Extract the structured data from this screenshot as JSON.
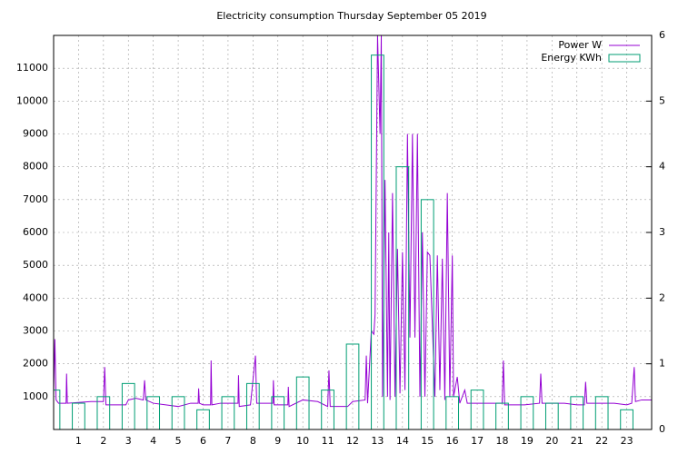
{
  "chart_data": {
    "type": "line",
    "title": "Electricity consumption Thursday September 05 2019",
    "xlim": [
      0,
      24
    ],
    "xticks": [
      1,
      2,
      3,
      4,
      5,
      6,
      7,
      8,
      9,
      10,
      11,
      12,
      13,
      14,
      15,
      16,
      17,
      18,
      19,
      20,
      21,
      22,
      23
    ],
    "ylim": [
      0,
      12000
    ],
    "yticks": [
      1000,
      2000,
      3000,
      4000,
      5000,
      6000,
      7000,
      8000,
      9000,
      10000,
      11000
    ],
    "y2lim": [
      0,
      6
    ],
    "y2ticks": [
      0,
      1,
      2,
      3,
      4,
      5,
      6
    ],
    "grid": true,
    "legend": "top-right",
    "series": [
      {
        "name": "Power W",
        "type": "line",
        "color": "#9400d3",
        "x": [
          0,
          0.05,
          0.1,
          0.2,
          0.5,
          0.52,
          0.55,
          1.5,
          2.0,
          2.05,
          2.1,
          2.9,
          3.0,
          3.3,
          3.6,
          3.65,
          3.7,
          4.0,
          5.0,
          5.5,
          5.8,
          5.82,
          5.85,
          6.0,
          6.3,
          6.32,
          6.35,
          6.7,
          7.4,
          7.42,
          7.45,
          7.9,
          8.1,
          8.15,
          8.8,
          8.82,
          8.85,
          9.4,
          9.42,
          9.45,
          10.0,
          10.6,
          11.0,
          11.05,
          11.1,
          11.8,
          12.0,
          12.5,
          12.55,
          12.6,
          12.75,
          12.85,
          12.9,
          13.0,
          13.1,
          13.15,
          13.2,
          13.3,
          13.4,
          13.45,
          13.5,
          13.6,
          13.7,
          13.8,
          13.9,
          14.0,
          14.1,
          14.2,
          14.3,
          14.4,
          14.5,
          14.6,
          14.7,
          14.8,
          14.9,
          15.0,
          15.1,
          15.3,
          15.4,
          15.5,
          15.6,
          15.7,
          15.8,
          15.9,
          16.0,
          16.05,
          16.2,
          16.3,
          16.5,
          16.6,
          17.0,
          17.5,
          18.0,
          18.05,
          18.1,
          18.9,
          19.5,
          19.55,
          19.6,
          20.5,
          21.0,
          21.3,
          21.35,
          21.4,
          22.5,
          23.0,
          23.2,
          23.3,
          23.35,
          23.6,
          24
        ],
        "values": [
          1000,
          2750,
          900,
          800,
          800,
          1700,
          800,
          850,
          850,
          1900,
          750,
          750,
          900,
          950,
          900,
          1500,
          900,
          800,
          700,
          800,
          800,
          1250,
          800,
          750,
          750,
          2100,
          750,
          800,
          800,
          1650,
          700,
          750,
          2250,
          800,
          800,
          1500,
          750,
          750,
          1300,
          700,
          900,
          850,
          700,
          1800,
          700,
          700,
          850,
          900,
          2250,
          800,
          3000,
          2900,
          3500,
          12000,
          9000,
          12000,
          1000,
          7600,
          1000,
          6000,
          900,
          7200,
          1000,
          5500,
          1100,
          5400,
          1200,
          9000,
          2800,
          9000,
          2800,
          9000,
          1000,
          6000,
          1000,
          5400,
          5300,
          1000,
          5300,
          1200,
          5200,
          900,
          7200,
          1000,
          5300,
          1000,
          1600,
          800,
          1200,
          800,
          800,
          800,
          800,
          2100,
          750,
          750,
          800,
          1700,
          800,
          800,
          750,
          750,
          1450,
          800,
          800,
          750,
          800,
          1900,
          850,
          900,
          900
        ]
      },
      {
        "name": "Energy KWh",
        "type": "boxes",
        "axis": "y2",
        "color": "#009e73",
        "x": [
          0,
          1,
          2,
          3,
          4,
          5,
          6,
          7,
          8,
          9,
          10,
          11,
          12,
          13,
          14,
          15,
          16,
          17,
          18,
          19,
          20,
          21,
          22,
          23
        ],
        "values": [
          0.6,
          0.4,
          0.5,
          0.7,
          0.5,
          0.5,
          0.3,
          0.5,
          0.7,
          0.5,
          0.8,
          0.6,
          1.3,
          5.7,
          4.0,
          3.5,
          0.5,
          0.6,
          0.4,
          0.5,
          0.4,
          0.5,
          0.5,
          0.3
        ]
      }
    ]
  }
}
